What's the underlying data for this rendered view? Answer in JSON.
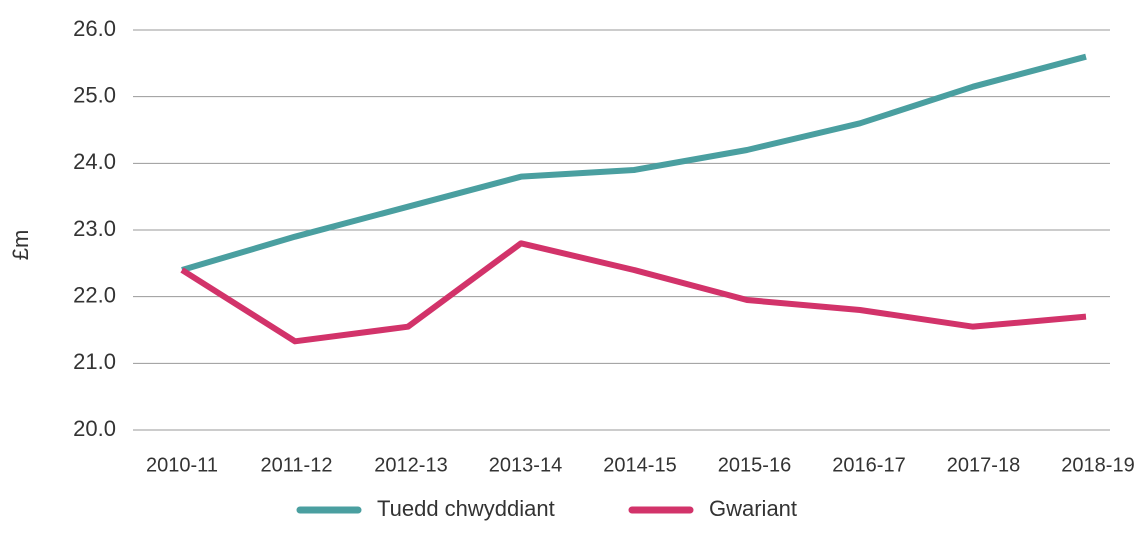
{
  "chart_data": {
    "type": "line",
    "y_label": "£m",
    "categories": [
      "2010-11",
      "2011-12",
      "2012-13",
      "2013-14",
      "2014-15",
      "2015-16",
      "2016-17",
      "2017-18",
      "2018-19"
    ],
    "series": [
      {
        "name": "Tuedd chwyddiant",
        "color": "#4a9fa0",
        "values": [
          22.4,
          22.9,
          23.35,
          23.8,
          23.9,
          24.2,
          24.6,
          25.15,
          25.6
        ]
      },
      {
        "name": "Gwariant",
        "color": "#d2336a",
        "values": [
          22.4,
          21.33,
          21.55,
          22.8,
          22.4,
          21.95,
          21.8,
          21.55,
          21.7
        ]
      }
    ],
    "ylim": [
      20,
      26
    ],
    "yticks": [
      {
        "value": 20,
        "label": "20.0"
      },
      {
        "value": 21,
        "label": "21.0"
      },
      {
        "value": 22,
        "label": "22.0"
      },
      {
        "value": 23,
        "label": "23.0"
      },
      {
        "value": 24,
        "label": "24.0"
      },
      {
        "value": 25,
        "label": "25.0"
      },
      {
        "value": 26,
        "label": "26.0"
      }
    ],
    "grid": true,
    "legend": "bottom"
  }
}
